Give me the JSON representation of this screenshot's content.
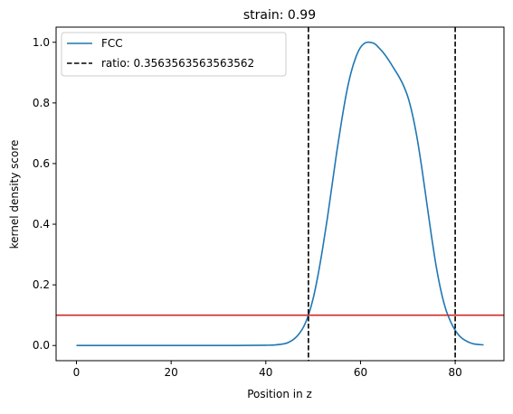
{
  "chart_data": {
    "type": "line",
    "title": "strain: 0.99",
    "xlabel": "Position in z",
    "ylabel": "kernel density score",
    "xlim": [
      -4.3,
      90.3
    ],
    "ylim": [
      -0.05,
      1.05
    ],
    "xticks": [
      0,
      20,
      40,
      60,
      80
    ],
    "yticks": [
      0.0,
      0.2,
      0.4,
      0.6,
      0.8,
      1.0
    ],
    "xtick_labels": [
      "0",
      "20",
      "40",
      "60",
      "80"
    ],
    "ytick_labels": [
      "0.0",
      "0.2",
      "0.4",
      "0.6",
      "0.8",
      "1.0"
    ],
    "grid": false,
    "legend_position": "upper-left",
    "series": [
      {
        "name": "FCC",
        "color": "#1f77b4",
        "style": "solid",
        "x": [
          0,
          10,
          20,
          30,
          40,
          42,
          44,
          45,
          46,
          47,
          48,
          49,
          50,
          51,
          52,
          53,
          54,
          55,
          56,
          57,
          58,
          59,
          60,
          61,
          62,
          63,
          64,
          65,
          66,
          67,
          68,
          69,
          70,
          71,
          72,
          73,
          74,
          75,
          76,
          77,
          78,
          79,
          80,
          81,
          82,
          83,
          84,
          86
        ],
        "y": [
          0.0,
          0.0,
          0.0,
          0.0,
          0.001,
          0.002,
          0.006,
          0.012,
          0.022,
          0.038,
          0.062,
          0.1,
          0.155,
          0.23,
          0.32,
          0.42,
          0.53,
          0.64,
          0.74,
          0.83,
          0.9,
          0.95,
          0.983,
          0.998,
          1.0,
          0.995,
          0.98,
          0.962,
          0.94,
          0.915,
          0.89,
          0.86,
          0.82,
          0.76,
          0.68,
          0.58,
          0.47,
          0.36,
          0.26,
          0.18,
          0.12,
          0.08,
          0.05,
          0.03,
          0.018,
          0.01,
          0.005,
          0.002
        ]
      }
    ],
    "vlines": {
      "label": "ratio: 0.3563563563563562",
      "color": "#000000",
      "style": "dashed",
      "x": [
        49,
        80
      ]
    },
    "hline": {
      "y": 0.1,
      "color": "#d62728",
      "style": "solid"
    }
  }
}
